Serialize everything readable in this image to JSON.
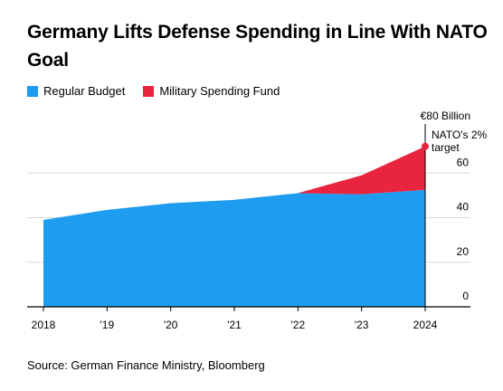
{
  "header": {
    "title": "Germany Lifts Defense Spending in Line With NATO Goal"
  },
  "legend": [
    {
      "label": "Regular Budget",
      "color": "#1e9cf0"
    },
    {
      "label": "Military Spending Fund",
      "color": "#e9243f"
    }
  ],
  "chart_data": {
    "type": "area",
    "x": [
      "2018",
      "'19",
      "'20",
      "'21",
      "'22",
      "'23",
      "2024"
    ],
    "series": [
      {
        "name": "Regular Budget",
        "values": [
          39,
          43.5,
          46.5,
          48,
          51,
          50.5,
          52.5
        ]
      },
      {
        "name": "Military Spending Fund",
        "values": [
          0,
          0,
          0,
          0,
          0,
          8.5,
          19.5
        ]
      }
    ],
    "stacked": true,
    "ylim": [
      0,
      80
    ],
    "yticks": [
      0,
      20,
      40,
      60
    ],
    "y_top_label": "€80 Billion",
    "axis_side": "right",
    "grid": true,
    "annotation": {
      "label_lines": [
        "NATO's 2%",
        "target"
      ],
      "x": "2024",
      "y": 72
    }
  },
  "source": "Source: German Finance Ministry, Bloomberg"
}
